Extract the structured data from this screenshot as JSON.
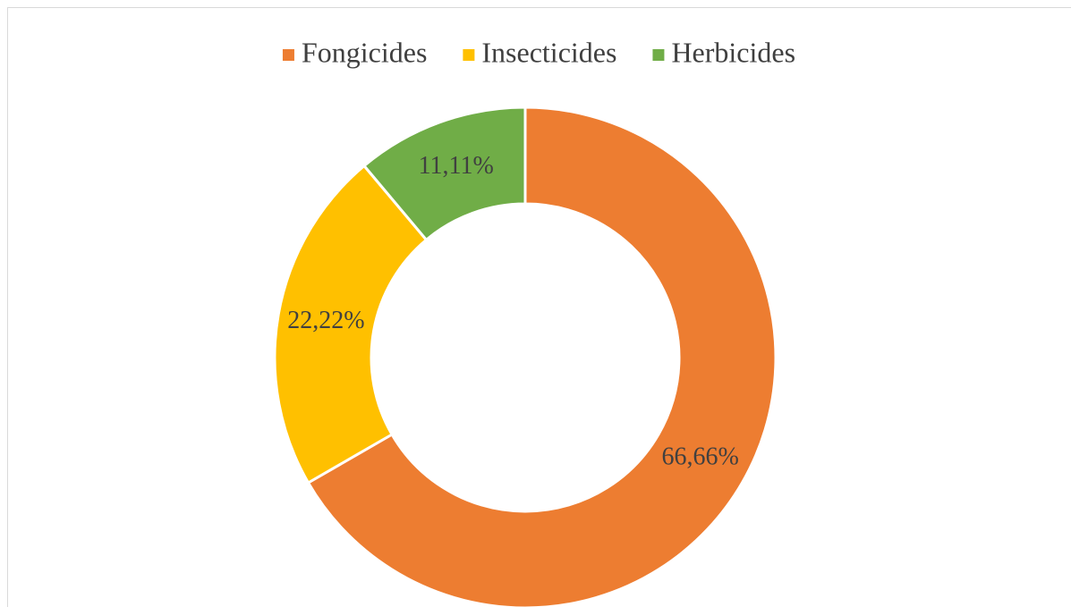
{
  "chart_data": {
    "type": "donut",
    "categories": [
      "Fongicides",
      "Insecticides",
      "Herbicides"
    ],
    "values": [
      66.66,
      22.22,
      11.11
    ],
    "value_labels": [
      "66,66%",
      "22,22%",
      "11,11%"
    ],
    "colors": [
      "#ED7D31",
      "#FFC000",
      "#70AD47"
    ],
    "legend": "top"
  }
}
